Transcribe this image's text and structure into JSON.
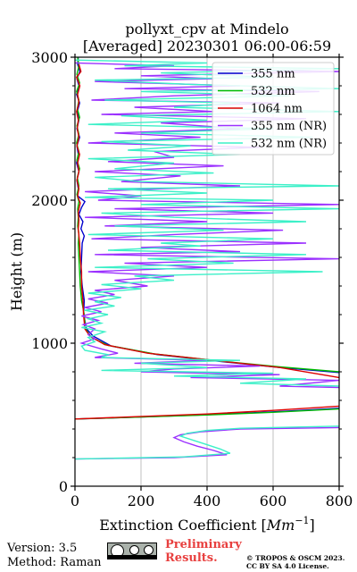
{
  "chart_data": {
    "type": "line",
    "title": "pollyxt_cpv at Mindelo",
    "subtitle": "[Averaged] 20230301 06:00-06:59",
    "xlabel": "Extinction Coefficient [Mm⁻¹]",
    "xlabel_main": "Extinction Coefficient [",
    "xlabel_unit": "Mm",
    "xlabel_exp": "−1",
    "xlabel_close": "]",
    "ylabel": "Height (m)",
    "xlim": [
      0,
      800
    ],
    "ylim": [
      0,
      3000
    ],
    "xticks": [
      0,
      200,
      400,
      600,
      800
    ],
    "yticks": [
      0,
      1000,
      2000,
      3000
    ],
    "xtick_labels": [
      "0",
      "200",
      "400",
      "600",
      "800"
    ],
    "ytick_labels": [
      "0",
      "1000",
      "2000",
      "3000"
    ],
    "grid": true,
    "legend_position": "top-right",
    "series": [
      {
        "name": "355 nm",
        "color": "#0000cc",
        "points": [
          [
            10,
            3000
          ],
          [
            8,
            2950
          ],
          [
            15,
            2900
          ],
          [
            6,
            2850
          ],
          [
            12,
            2800
          ],
          [
            5,
            2740
          ],
          [
            14,
            2680
          ],
          [
            7,
            2620
          ],
          [
            12,
            2560
          ],
          [
            6,
            2500
          ],
          [
            14,
            2440
          ],
          [
            6,
            2380
          ],
          [
            10,
            2320
          ],
          [
            5,
            2260
          ],
          [
            12,
            2200
          ],
          [
            6,
            2140
          ],
          [
            10,
            2080
          ],
          [
            8,
            2030
          ],
          [
            30,
            1990
          ],
          [
            20,
            1950
          ],
          [
            12,
            1900
          ],
          [
            24,
            1850
          ],
          [
            18,
            1800
          ],
          [
            28,
            1750
          ],
          [
            22,
            1700
          ],
          [
            20,
            1600
          ],
          [
            18,
            1500
          ],
          [
            22,
            1400
          ],
          [
            28,
            1300
          ],
          [
            26,
            1200
          ],
          [
            35,
            1100
          ],
          [
            55,
            1050
          ],
          [
            110,
            980
          ],
          [
            250,
            920
          ],
          [
            450,
            870
          ],
          [
            620,
            830
          ],
          [
            800,
            795
          ]
        ]
      },
      {
        "name": "532 nm",
        "color": "#00bb00",
        "points": [
          [
            8,
            3000
          ],
          [
            12,
            2940
          ],
          [
            6,
            2880
          ],
          [
            14,
            2820
          ],
          [
            5,
            2760
          ],
          [
            12,
            2700
          ],
          [
            7,
            2640
          ],
          [
            14,
            2580
          ],
          [
            6,
            2520
          ],
          [
            12,
            2460
          ],
          [
            5,
            2400
          ],
          [
            12,
            2340
          ],
          [
            6,
            2280
          ],
          [
            14,
            2220
          ],
          [
            7,
            2160
          ],
          [
            12,
            2100
          ],
          [
            6,
            2040
          ],
          [
            12,
            1990
          ],
          [
            8,
            1940
          ],
          [
            10,
            1880
          ],
          [
            8,
            1820
          ],
          [
            12,
            1760
          ],
          [
            10,
            1700
          ],
          [
            12,
            1600
          ],
          [
            14,
            1500
          ],
          [
            16,
            1400
          ],
          [
            20,
            1300
          ],
          [
            28,
            1200
          ],
          [
            32,
            1100
          ],
          [
            50,
            1040
          ],
          [
            100,
            985
          ],
          [
            240,
            925
          ],
          [
            440,
            875
          ],
          [
            620,
            835
          ],
          [
            800,
            800
          ]
        ]
      },
      {
        "name": "1064 nm",
        "color": "#dd0000",
        "points": [
          [
            12,
            2950
          ],
          [
            18,
            2900
          ],
          [
            5,
            2860
          ],
          [
            15,
            2800
          ],
          [
            8,
            2740
          ],
          [
            12,
            2680
          ],
          [
            5,
            2620
          ],
          [
            10,
            2560
          ],
          [
            7,
            2500
          ],
          [
            12,
            2440
          ],
          [
            6,
            2380
          ],
          [
            14,
            2320
          ],
          [
            8,
            2260
          ],
          [
            12,
            2200
          ],
          [
            6,
            2140
          ],
          [
            12,
            2080
          ],
          [
            8,
            2030
          ],
          [
            16,
            1980
          ],
          [
            10,
            1920
          ],
          [
            12,
            1860
          ],
          [
            10,
            1800
          ],
          [
            14,
            1700
          ],
          [
            16,
            1600
          ],
          [
            20,
            1500
          ],
          [
            20,
            1400
          ],
          [
            24,
            1300
          ],
          [
            26,
            1200
          ],
          [
            30,
            1100
          ],
          [
            45,
            1050
          ],
          [
            90,
            990
          ],
          [
            220,
            930
          ],
          [
            420,
            880
          ],
          [
            620,
            830
          ],
          [
            800,
            760
          ]
        ]
      },
      {
        "name": "355 nm (NR)",
        "color": "#9b30ff",
        "points": [
          [
            0,
            2960
          ],
          [
            300,
            2940
          ],
          [
            120,
            2920
          ],
          [
            800,
            2900
          ],
          [
            200,
            2870
          ],
          [
            420,
            2850
          ],
          [
            60,
            2830
          ],
          [
            500,
            2800
          ],
          [
            150,
            2780
          ],
          [
            740,
            2760
          ],
          [
            300,
            2730
          ],
          [
            50,
            2700
          ],
          [
            620,
            2680
          ],
          [
            180,
            2650
          ],
          [
            420,
            2620
          ],
          [
            80,
            2600
          ],
          [
            700,
            2570
          ],
          [
            260,
            2540
          ],
          [
            500,
            2500
          ],
          [
            120,
            2470
          ],
          [
            380,
            2440
          ],
          [
            40,
            2400
          ],
          [
            560,
            2370
          ],
          [
            240,
            2340
          ],
          [
            300,
            2300
          ],
          [
            100,
            2270
          ],
          [
            450,
            2240
          ],
          [
            60,
            2200
          ],
          [
            320,
            2170
          ],
          [
            140,
            2130
          ],
          [
            500,
            2100
          ],
          [
            30,
            2060
          ],
          [
            200,
            2030
          ],
          [
            70,
            2000
          ],
          [
            800,
            1970
          ],
          [
            120,
            1940
          ],
          [
            600,
            1910
          ],
          [
            30,
            1880
          ],
          [
            400,
            1850
          ],
          [
            90,
            1820
          ],
          [
            630,
            1790
          ],
          [
            300,
            1760
          ],
          [
            50,
            1730
          ],
          [
            700,
            1700
          ],
          [
            200,
            1670
          ],
          [
            500,
            1640
          ],
          [
            60,
            1620
          ],
          [
            800,
            1590
          ],
          [
            150,
            1560
          ],
          [
            400,
            1530
          ],
          [
            40,
            1500
          ],
          [
            300,
            1470
          ],
          [
            120,
            1440
          ],
          [
            220,
            1400
          ],
          [
            60,
            1370
          ],
          [
            120,
            1340
          ],
          [
            40,
            1310
          ],
          [
            100,
            1280
          ],
          [
            30,
            1250
          ],
          [
            80,
            1220
          ],
          [
            20,
            1190
          ],
          [
            70,
            1160
          ],
          [
            25,
            1130
          ],
          [
            60,
            1100
          ],
          [
            40,
            1060
          ],
          [
            60,
            1030
          ],
          [
            20,
            1000
          ],
          [
            80,
            960
          ],
          [
            130,
            930
          ],
          [
            60,
            900
          ],
          [
            400,
            880
          ],
          [
            180,
            860
          ],
          [
            560,
            840
          ],
          [
            300,
            820
          ],
          [
            200,
            800
          ],
          [
            620,
            780
          ],
          [
            350,
            760
          ],
          [
            800,
            740
          ],
          [
            620,
            700
          ],
          [
            800,
            690
          ]
        ]
      },
      {
        "name": "532 nm (NR)",
        "color": "#3cf0c8",
        "points": [
          [
            0,
            2980
          ],
          [
            400,
            2960
          ],
          [
            150,
            2940
          ],
          [
            800,
            2920
          ],
          [
            260,
            2890
          ],
          [
            600,
            2860
          ],
          [
            60,
            2840
          ],
          [
            350,
            2810
          ],
          [
            800,
            2780
          ],
          [
            200,
            2760
          ],
          [
            650,
            2730
          ],
          [
            90,
            2700
          ],
          [
            500,
            2680
          ],
          [
            300,
            2650
          ],
          [
            800,
            2620
          ],
          [
            140,
            2590
          ],
          [
            400,
            2560
          ],
          [
            40,
            2530
          ],
          [
            600,
            2500
          ],
          [
            200,
            2470
          ],
          [
            720,
            2440
          ],
          [
            80,
            2410
          ],
          [
            350,
            2380
          ],
          [
            160,
            2350
          ],
          [
            500,
            2320
          ],
          [
            40,
            2290
          ],
          [
            300,
            2260
          ],
          [
            120,
            2220
          ],
          [
            420,
            2190
          ],
          [
            60,
            2160
          ],
          [
            200,
            2130
          ],
          [
            800,
            2100
          ],
          [
            100,
            2080
          ],
          [
            400,
            2050
          ],
          [
            30,
            2020
          ],
          [
            600,
            2000
          ],
          [
            200,
            1970
          ],
          [
            800,
            1940
          ],
          [
            80,
            1910
          ],
          [
            300,
            1880
          ],
          [
            700,
            1850
          ],
          [
            120,
            1820
          ],
          [
            450,
            1790
          ],
          [
            40,
            1760
          ],
          [
            600,
            1730
          ],
          [
            260,
            1700
          ],
          [
            380,
            1680
          ],
          [
            100,
            1650
          ],
          [
            700,
            1620
          ],
          [
            220,
            1590
          ],
          [
            480,
            1560
          ],
          [
            60,
            1530
          ],
          [
            750,
            1500
          ],
          [
            180,
            1470
          ],
          [
            300,
            1440
          ],
          [
            80,
            1410
          ],
          [
            200,
            1380
          ],
          [
            40,
            1350
          ],
          [
            140,
            1320
          ],
          [
            60,
            1290
          ],
          [
            120,
            1260
          ],
          [
            30,
            1230
          ],
          [
            100,
            1200
          ],
          [
            40,
            1170
          ],
          [
            80,
            1140
          ],
          [
            20,
            1110
          ],
          [
            90,
            1080
          ],
          [
            40,
            1040
          ],
          [
            60,
            1010
          ],
          [
            20,
            980
          ],
          [
            30,
            950
          ],
          [
            100,
            920
          ],
          [
            80,
            900
          ],
          [
            500,
            880
          ],
          [
            200,
            860
          ],
          [
            400,
            830
          ],
          [
            80,
            810
          ],
          [
            600,
            790
          ],
          [
            300,
            770
          ],
          [
            700,
            750
          ],
          [
            500,
            720
          ],
          [
            800,
            700
          ]
        ]
      }
    ]
  },
  "lower_curves": [
    {
      "series_index": 0,
      "points": [
        [
          800,
          545
        ],
        [
          600,
          520
        ],
        [
          400,
          500
        ],
        [
          150,
          480
        ],
        [
          0,
          470
        ]
      ]
    },
    {
      "series_index": 1,
      "points": [
        [
          800,
          540
        ],
        [
          600,
          517
        ],
        [
          400,
          498
        ],
        [
          150,
          480
        ],
        [
          0,
          470
        ]
      ]
    },
    {
      "series_index": 2,
      "points": [
        [
          800,
          560
        ],
        [
          600,
          530
        ],
        [
          400,
          505
        ],
        [
          150,
          483
        ],
        [
          0,
          470
        ]
      ]
    },
    {
      "series_index": 3,
      "points": [
        [
          800,
          410
        ],
        [
          500,
          400
        ],
        [
          380,
          380
        ],
        [
          320,
          360
        ],
        [
          300,
          340
        ],
        [
          330,
          310
        ],
        [
          370,
          280
        ],
        [
          420,
          250
        ],
        [
          460,
          220
        ],
        [
          300,
          200
        ],
        [
          0,
          190
        ]
      ]
    },
    {
      "series_index": 4,
      "points": [
        [
          800,
          420
        ],
        [
          500,
          405
        ],
        [
          400,
          390
        ],
        [
          340,
          370
        ],
        [
          320,
          350
        ],
        [
          360,
          320
        ],
        [
          400,
          290
        ],
        [
          440,
          260
        ],
        [
          470,
          230
        ],
        [
          330,
          205
        ],
        [
          0,
          190
        ]
      ]
    }
  ],
  "footer": {
    "version": "Version: 3.5",
    "method": "Method: Raman",
    "preliminary_line1": "Preliminary",
    "preliminary_line2": "Results.",
    "copyright_line1": "© TROPOS & OSCM 2023.",
    "copyright_line2": "CC BY SA 4.0 License.",
    "cc_badge_icon": "cc-by-sa-badge-icon"
  }
}
